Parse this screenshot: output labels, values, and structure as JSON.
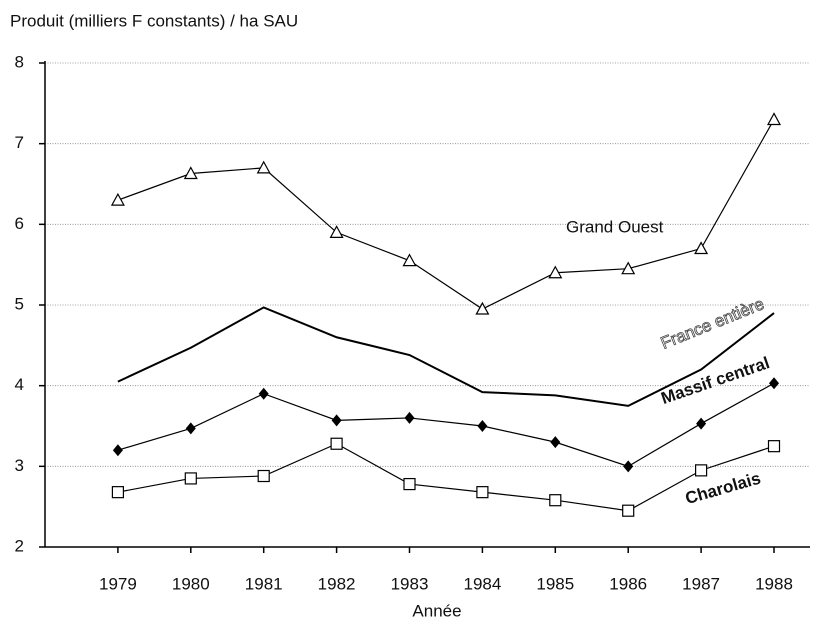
{
  "chart_data": {
    "type": "line",
    "title": "Produit (milliers F constants) / ha SAU",
    "xlabel": "Année",
    "categories": [
      "1979",
      "1980",
      "1981",
      "1982",
      "1983",
      "1984",
      "1985",
      "1986",
      "1987",
      "1988"
    ],
    "ylim": [
      2,
      8
    ],
    "yticks": [
      2,
      3,
      4,
      5,
      6,
      7,
      8
    ],
    "grid": true,
    "series": [
      {
        "name": "Grand Ouest",
        "color": "#000000",
        "marker": "triangle",
        "values": [
          6.3,
          6.63,
          6.7,
          5.9,
          5.55,
          4.95,
          5.4,
          5.45,
          5.7,
          7.3
        ]
      },
      {
        "name": "France entière",
        "color": "#000000",
        "marker": "none",
        "values": [
          4.05,
          4.47,
          4.97,
          4.6,
          4.38,
          3.92,
          3.88,
          3.75,
          4.2,
          4.9
        ]
      },
      {
        "name": "Massif central",
        "color": "#000000",
        "marker": "diamond",
        "values": [
          3.2,
          3.47,
          3.9,
          3.57,
          3.6,
          3.5,
          3.3,
          3.0,
          3.53,
          4.03
        ]
      },
      {
        "name": "Charolais",
        "color": "#000000",
        "marker": "square",
        "values": [
          2.68,
          2.85,
          2.88,
          3.28,
          2.78,
          2.68,
          2.58,
          2.45,
          2.95,
          3.25
        ]
      }
    ]
  }
}
